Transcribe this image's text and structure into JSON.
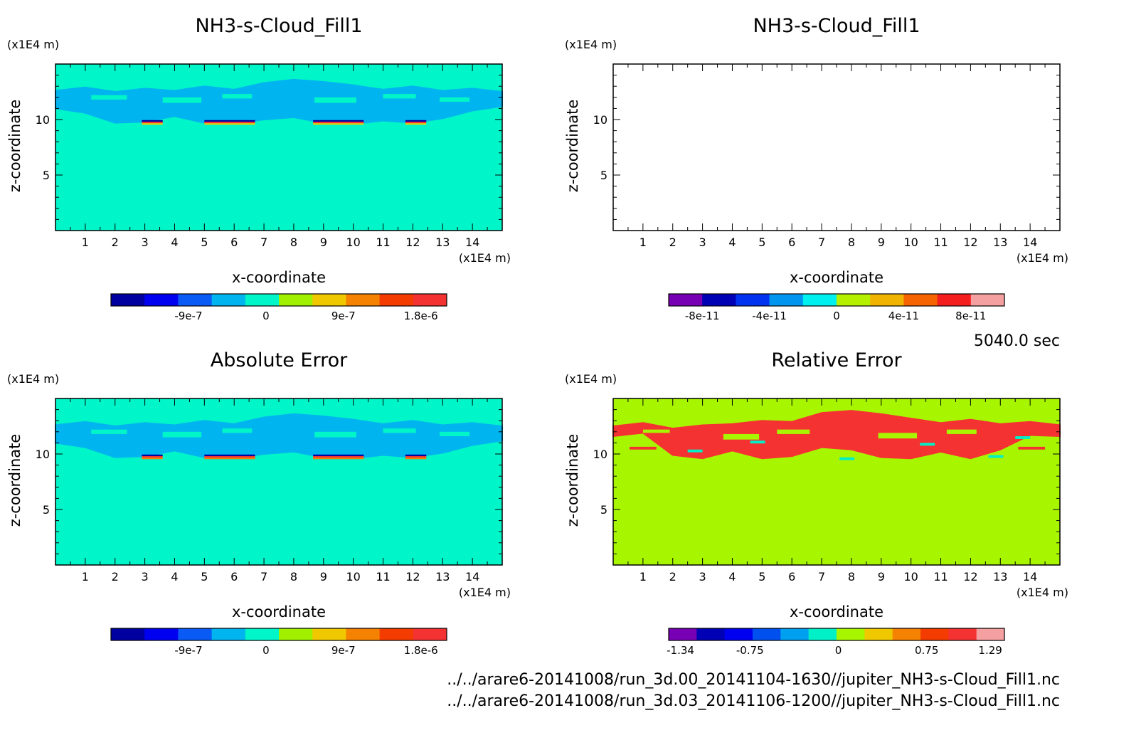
{
  "time_label": "5040.0 sec",
  "file_paths": [
    "../../arare6-20141008/run_3d.00_20141104-1630//jupiter_NH3-s-Cloud_Fill1.nc",
    "../../arare6-20141008/run_3d.03_20141106-1200//jupiter_NH3-s-Cloud_Fill1.nc"
  ],
  "chart_data": [
    {
      "type": "heatmap",
      "title": "NH3-s-Cloud_Fill1",
      "xlabel": "x-coordinate",
      "ylabel": "z-coordinate",
      "x_unit": "(x1E4 m)",
      "y_unit": "(x1E4 m)",
      "xlim": [
        0,
        15
      ],
      "ylim": [
        0,
        15
      ],
      "x_ticks": [
        "1",
        "2",
        "3",
        "4",
        "5",
        "6",
        "7",
        "8",
        "9",
        "10",
        "11",
        "12",
        "13",
        "14"
      ],
      "y_ticks": [
        "5",
        "10"
      ],
      "background_field_color": "#00f5c8",
      "field_pattern": "cloud_layer",
      "colorbar": {
        "colors": [
          "#0000a0",
          "#0000f0",
          "#0a5af5",
          "#00b4f0",
          "#00f5c8",
          "#a0f000",
          "#f0c800",
          "#f58200",
          "#f53c00",
          "#f53232"
        ],
        "labels": [
          "-9e-7",
          "0",
          "9e-7",
          "1.8e-6"
        ],
        "label_values": [
          -9e-07,
          0,
          9e-07,
          1.8e-06
        ],
        "range": [
          -1.8e-06,
          2.1e-06
        ]
      }
    },
    {
      "type": "heatmap",
      "title": "NH3-s-Cloud_Fill1",
      "xlabel": "x-coordinate",
      "ylabel": "z-coordinate",
      "x_unit": "(x1E4 m)",
      "y_unit": "(x1E4 m)",
      "xlim": [
        0,
        15
      ],
      "ylim": [
        0,
        15
      ],
      "x_ticks": [
        "1",
        "2",
        "3",
        "4",
        "5",
        "6",
        "7",
        "8",
        "9",
        "10",
        "11",
        "12",
        "13",
        "14"
      ],
      "y_ticks": [
        "5",
        "10"
      ],
      "background_field_color": "#ffffff",
      "field_pattern": "empty",
      "colorbar": {
        "colors": [
          "#7800b4",
          "#0000b4",
          "#0032f0",
          "#0096f0",
          "#00f0f0",
          "#b4f000",
          "#f0b400",
          "#f56400",
          "#f51e1e",
          "#f5a0a0"
        ],
        "labels": [
          "-8e-11",
          "-4e-11",
          "0",
          "4e-11",
          "8e-11"
        ],
        "label_values": [
          -8e-11,
          -4e-11,
          0,
          4e-11,
          8e-11
        ],
        "range": [
          -1e-10,
          1e-10
        ]
      }
    },
    {
      "type": "heatmap",
      "title": "Absolute Error",
      "xlabel": "x-coordinate",
      "ylabel": "z-coordinate",
      "x_unit": "(x1E4 m)",
      "y_unit": "(x1E4 m)",
      "xlim": [
        0,
        15
      ],
      "ylim": [
        0,
        15
      ],
      "x_ticks": [
        "1",
        "2",
        "3",
        "4",
        "5",
        "6",
        "7",
        "8",
        "9",
        "10",
        "11",
        "12",
        "13",
        "14"
      ],
      "y_ticks": [
        "5",
        "10"
      ],
      "background_field_color": "#00f5c8",
      "field_pattern": "cloud_layer",
      "colorbar": {
        "colors": [
          "#0000a0",
          "#0000f0",
          "#0a5af5",
          "#00b4f0",
          "#00f5c8",
          "#a0f000",
          "#f0c800",
          "#f58200",
          "#f53c00",
          "#f53232"
        ],
        "labels": [
          "-9e-7",
          "0",
          "9e-7",
          "1.8e-6"
        ],
        "label_values": [
          -9e-07,
          0,
          9e-07,
          1.8e-06
        ],
        "range": [
          -1.8e-06,
          2.1e-06
        ]
      }
    },
    {
      "type": "heatmap",
      "title": "Relative Error",
      "xlabel": "x-coordinate",
      "ylabel": "z-coordinate",
      "x_unit": "(x1E4 m)",
      "y_unit": "(x1E4 m)",
      "xlim": [
        0,
        15
      ],
      "ylim": [
        0,
        15
      ],
      "x_ticks": [
        "1",
        "2",
        "3",
        "4",
        "5",
        "6",
        "7",
        "8",
        "9",
        "10",
        "11",
        "12",
        "13",
        "14"
      ],
      "y_ticks": [
        "5",
        "10"
      ],
      "background_field_color": "#a8f500",
      "field_pattern": "relative_error",
      "colorbar": {
        "colors": [
          "#7800b4",
          "#0000b4",
          "#0000f0",
          "#0050f0",
          "#00a0f0",
          "#00f0c8",
          "#a8f500",
          "#f0c800",
          "#f58200",
          "#f53c00",
          "#f53232",
          "#f5a0a0"
        ],
        "labels": [
          "-1.34",
          "-0.75",
          "0",
          "0.75",
          "1.29"
        ],
        "label_values": [
          -1.34,
          -0.75,
          0,
          0.75,
          1.29
        ],
        "range": [
          -1.44,
          1.41
        ]
      }
    }
  ]
}
